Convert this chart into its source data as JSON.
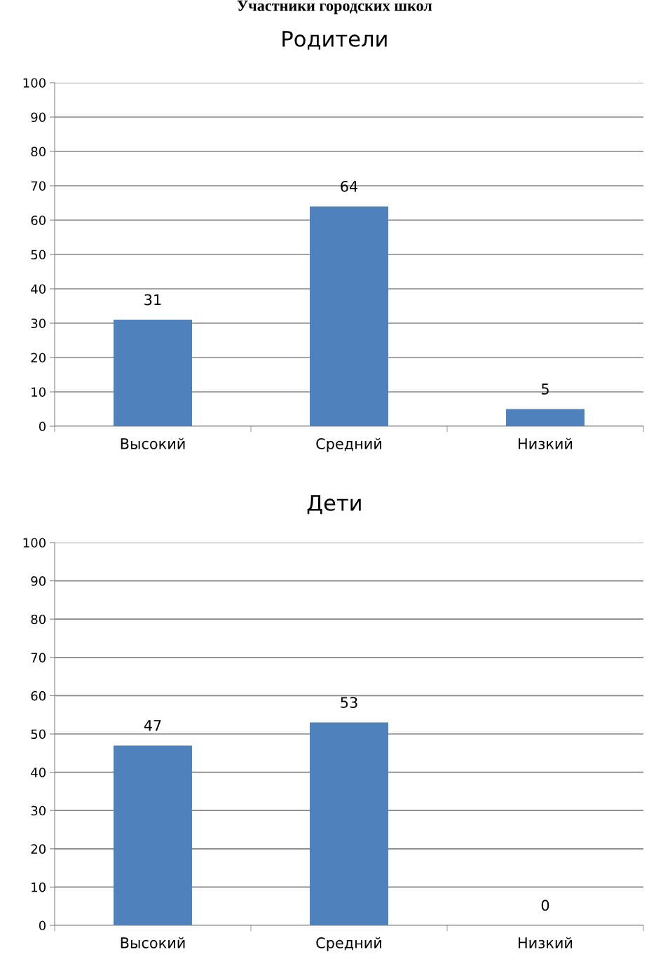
{
  "chart_data": [
    {
      "type": "bar",
      "title": "Родители",
      "annotations": [
        "Участники городских школ"
      ],
      "categories": [
        "Высокий",
        "Средний",
        "Низкий"
      ],
      "values": [
        31,
        64,
        5
      ],
      "color": "#4f81bd",
      "ylim": [
        0,
        100
      ],
      "yticks": [
        0,
        10,
        20,
        30,
        40,
        50,
        60,
        70,
        80,
        90,
        100
      ],
      "grid": "y",
      "data_labels": true
    },
    {
      "type": "bar",
      "title": "Дети",
      "categories": [
        "Высокий",
        "Средний",
        "Низкий"
      ],
      "values": [
        47,
        53,
        0
      ],
      "color": "#4f81bd",
      "ylim": [
        0,
        100
      ],
      "yticks": [
        0,
        10,
        20,
        30,
        40,
        50,
        60,
        70,
        80,
        90,
        100
      ],
      "grid": "y",
      "data_labels": true
    }
  ]
}
